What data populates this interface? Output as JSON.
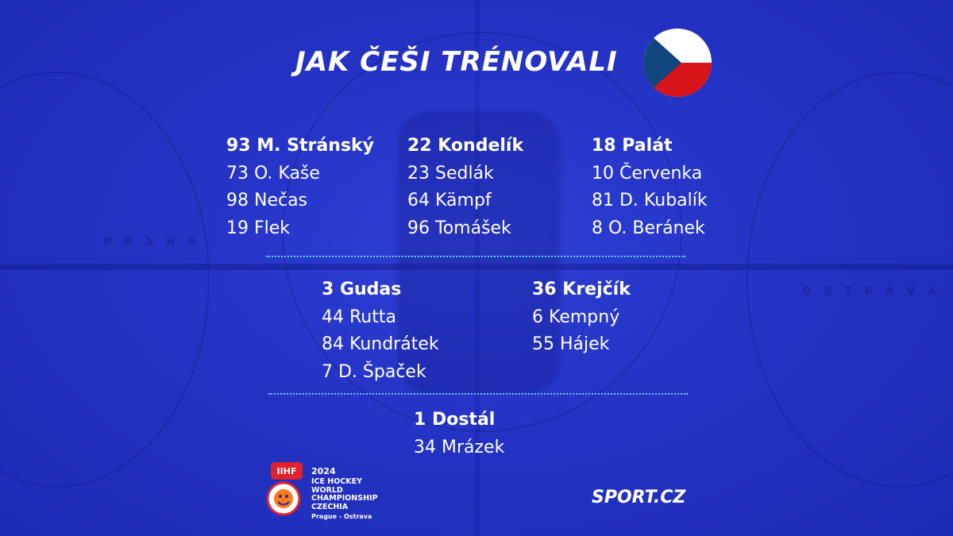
{
  "title": "JAK ČEŠI TRÉNOVALI",
  "colors": {
    "background": "#2433c4",
    "divider": "#5fd3f5",
    "flag_red": "#d7141a",
    "flag_blue": "#11457e",
    "flag_white": "#ffffff"
  },
  "flag_icon": "czech-flag-icon",
  "forward_lines": [
    {
      "players": [
        "93 M. Stránský",
        "73 O. Kaše",
        "98 Nečas",
        "19 Flek"
      ]
    },
    {
      "players": [
        "22 Kondelík",
        "23 Sedlák",
        "64 Kämpf",
        "96 Tomášek"
      ]
    },
    {
      "players": [
        "18 Palát",
        "10 Červenka",
        "81 D. Kubalík",
        "8 O. Beránek"
      ]
    }
  ],
  "defense_pairs": [
    {
      "players": [
        "3 Gudas",
        "44 Rutta",
        "84 Kundrátek",
        "7 D. Špaček"
      ]
    },
    {
      "players": [
        "36 Krejčík",
        "6 Kempný",
        "55 Hájek"
      ]
    }
  ],
  "goalies": {
    "players": [
      "1 Dostál",
      "34 Mrázek"
    ]
  },
  "footer": {
    "iihf_badge": "IIHF",
    "event_year": "2024",
    "event_line1": "ICE HOCKEY",
    "event_line2": "WORLD",
    "event_line3": "CHAMPIONSHIP",
    "event_line4": "CZECHIA",
    "event_cities": "Prague - Ostrava",
    "brand": "SPORT.CZ"
  }
}
